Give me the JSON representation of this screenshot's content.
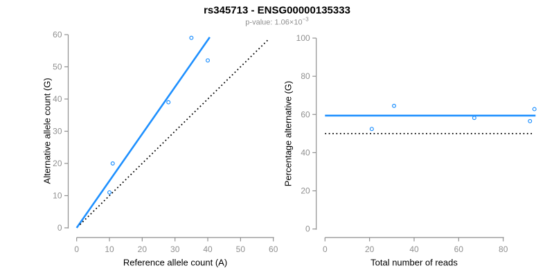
{
  "header": {
    "title": "rs345713 - ENSG00000135333",
    "subtitle_prefix": "p-value: 1.06×10",
    "subtitle_exponent": "−3"
  },
  "colors": {
    "accent_blue": "#1E90FF",
    "axis_gray": "#8f8f8f",
    "reference_black": "#000000"
  },
  "chart_data": [
    {
      "type": "scatter",
      "title": "",
      "xlabel": "Reference allele count (A)",
      "ylabel": "Alternative allele count (G)",
      "xlim": [
        0,
        60
      ],
      "ylim": [
        0,
        60
      ],
      "xticks": [
        0,
        10,
        20,
        30,
        40,
        50,
        60
      ],
      "yticks": [
        0,
        10,
        20,
        30,
        40,
        50,
        60
      ],
      "grid": false,
      "legend": false,
      "points": [
        [
          10,
          11
        ],
        [
          11,
          20
        ],
        [
          28,
          39
        ],
        [
          35,
          59
        ],
        [
          40,
          52
        ]
      ],
      "lines": [
        {
          "name": "fit-line",
          "x1": 0,
          "y1": 0,
          "x2": 40.6,
          "y2": 59.2,
          "color": "#1E90FF",
          "dash": "",
          "width": 2.6
        },
        {
          "name": "identity-line",
          "x1": 1,
          "y1": 1,
          "x2": 58.5,
          "y2": 58.5,
          "color": "#000000",
          "dash": "1.8 3.6",
          "width": 1.8
        }
      ]
    },
    {
      "type": "scatter",
      "title": "",
      "xlabel": "Total number of reads",
      "ylabel": "Percentage alternative (G)",
      "xlim": [
        0,
        95
      ],
      "ylim": [
        0,
        100
      ],
      "xticks": [
        0,
        20,
        40,
        60,
        80
      ],
      "yticks": [
        0,
        20,
        40,
        60,
        80,
        100
      ],
      "grid": false,
      "legend": false,
      "points": [
        [
          21,
          52.4
        ],
        [
          31,
          64.5
        ],
        [
          67,
          58.2
        ],
        [
          92,
          56.5
        ],
        [
          94,
          62.8
        ]
      ],
      "lines": [
        {
          "name": "fit-line",
          "x1": 0,
          "y1": 59.4,
          "x2": 94.5,
          "y2": 59.4,
          "color": "#1E90FF",
          "dash": "",
          "width": 2.6
        },
        {
          "name": "reference-line",
          "x1": 0,
          "y1": 50,
          "x2": 93,
          "y2": 50,
          "color": "#000000",
          "dash": "1.8 3.6",
          "width": 1.8
        }
      ]
    }
  ]
}
